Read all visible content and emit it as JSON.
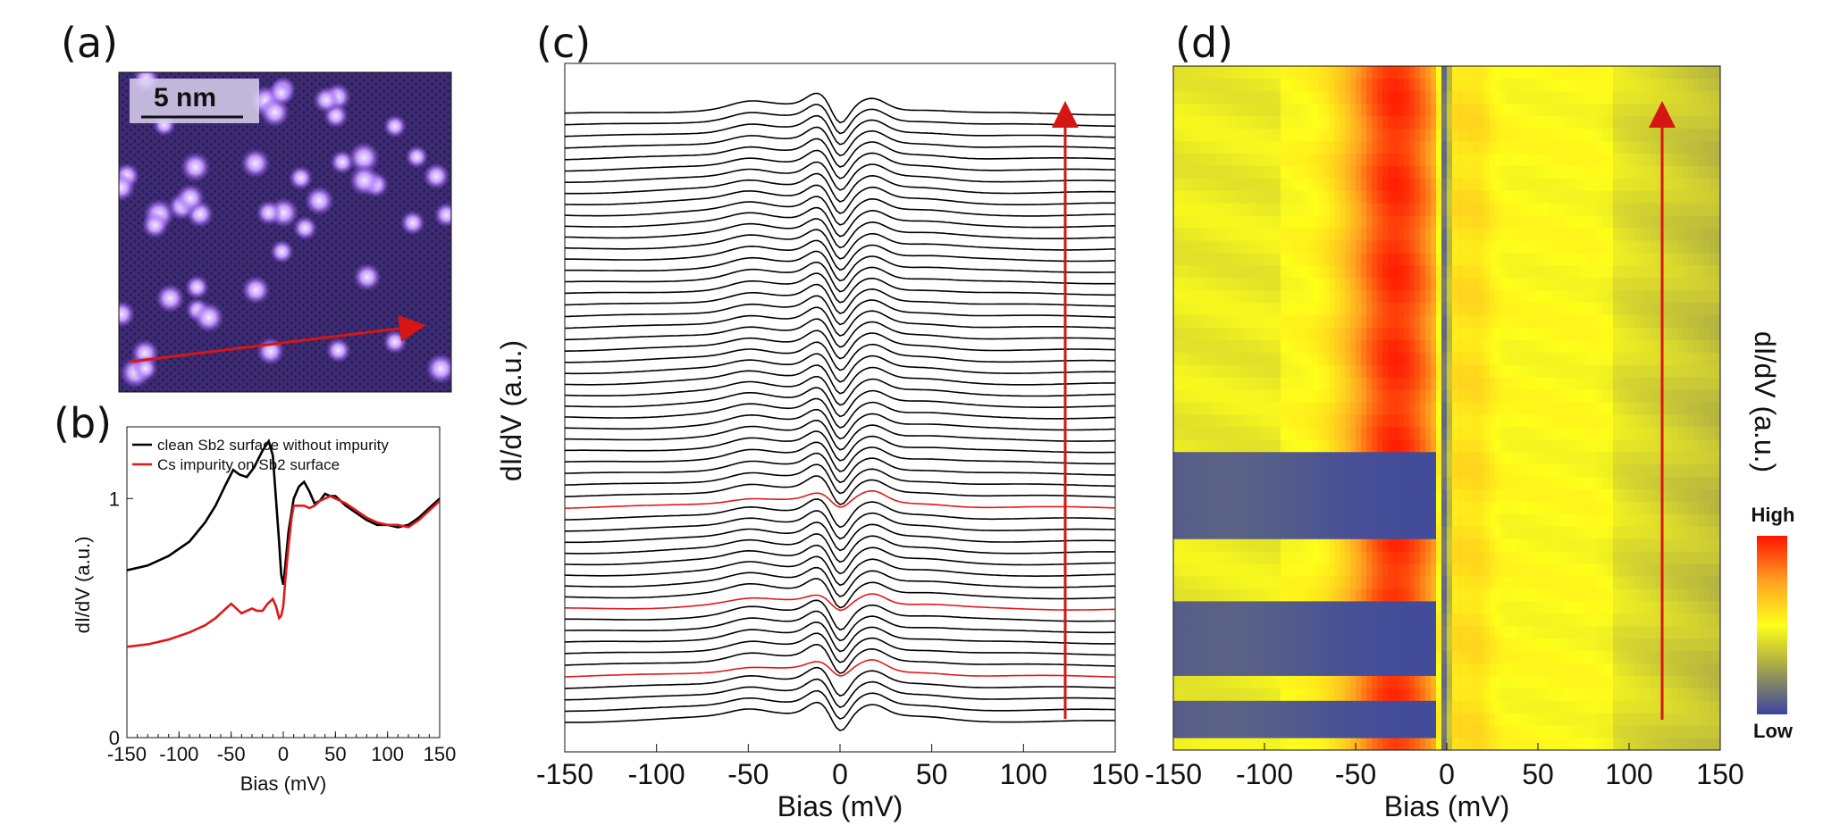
{
  "panels": {
    "a": {
      "label": "(a)",
      "scale_bar": "5 nm"
    },
    "b": {
      "label": "(b)"
    },
    "c": {
      "label": "(c)"
    },
    "d": {
      "label": "(d)"
    }
  },
  "colorbar": {
    "high": "High",
    "low": "Low",
    "title": "dI/dV (a.u.)"
  },
  "colors": {
    "black": "#000000",
    "red": "#e01818",
    "arrow": "#d61515"
  },
  "chart_data": [
    {
      "panel": "b",
      "type": "line",
      "xlabel": "Bias (mV)",
      "ylabel": "dI/dV (a.u.)",
      "xlim": [
        -150,
        150
      ],
      "ylim": [
        0,
        1.3
      ],
      "xticks": [
        "-150",
        "-100",
        "-50",
        "0",
        "50",
        "100",
        "150"
      ],
      "yticks": [
        "0",
        "1"
      ],
      "series": [
        {
          "name": "clean Sb2 surface without impurity",
          "color": "#000000",
          "x": [
            -150,
            -130,
            -110,
            -90,
            -75,
            -65,
            -55,
            -48,
            -42,
            -35,
            -28,
            -20,
            -14,
            -10,
            -7,
            -4,
            -2,
            0,
            2,
            5,
            10,
            15,
            20,
            25,
            30,
            35,
            40,
            45,
            50,
            55,
            60,
            70,
            80,
            90,
            100,
            110,
            120,
            130,
            140,
            150
          ],
          "y": [
            0.7,
            0.72,
            0.76,
            0.82,
            0.9,
            0.97,
            1.06,
            1.12,
            1.1,
            1.09,
            1.13,
            1.2,
            1.24,
            1.18,
            1.0,
            0.82,
            0.68,
            0.64,
            0.72,
            0.86,
            1.0,
            1.05,
            1.07,
            1.03,
            0.98,
            0.99,
            1.02,
            1.01,
            1.01,
            0.99,
            0.97,
            0.94,
            0.91,
            0.89,
            0.89,
            0.88,
            0.89,
            0.92,
            0.96,
            1.0
          ]
        },
        {
          "name": "Cs impurity on Sb2 surface",
          "color": "#e01818",
          "x": [
            -150,
            -130,
            -110,
            -90,
            -75,
            -65,
            -55,
            -50,
            -45,
            -40,
            -35,
            -30,
            -25,
            -20,
            -15,
            -10,
            -7,
            -4,
            -2,
            0,
            2,
            5,
            8,
            10,
            15,
            20,
            25,
            30,
            35,
            40,
            45,
            50,
            55,
            60,
            70,
            80,
            90,
            100,
            110,
            120,
            130,
            140,
            150
          ],
          "y": [
            0.38,
            0.39,
            0.41,
            0.44,
            0.47,
            0.5,
            0.54,
            0.56,
            0.54,
            0.52,
            0.53,
            0.54,
            0.53,
            0.53,
            0.56,
            0.58,
            0.55,
            0.5,
            0.51,
            0.55,
            0.66,
            0.8,
            0.92,
            0.97,
            0.97,
            0.97,
            0.96,
            0.97,
            0.99,
            1.0,
            1.01,
            1.0,
            0.99,
            0.98,
            0.95,
            0.92,
            0.9,
            0.89,
            0.89,
            0.88,
            0.91,
            0.95,
            0.99
          ]
        }
      ]
    },
    {
      "panel": "c",
      "type": "line",
      "xlabel": "Bias (mV)",
      "ylabel": "dI/dV (a.u.)",
      "xlim": [
        -150,
        150
      ],
      "xticks": [
        "-150",
        "-100",
        "-50",
        "0",
        "50",
        "100",
        "150"
      ],
      "n_spectra": 55,
      "red_spectra_index_from_bottom": [
        4,
        10,
        19
      ],
      "description": "waterfall of spectra stacked along the arrow path"
    },
    {
      "panel": "d",
      "type": "heatmap",
      "xlabel": "Bias (mV)",
      "xlim": [
        -150,
        150
      ],
      "xticks": [
        "-150",
        "-100",
        "-50",
        "0",
        "50",
        "100",
        "150"
      ],
      "n_rows": 55,
      "impurity_rows_from_bottom": [
        [
          1,
          3
        ],
        [
          6,
          8
        ],
        [
          9,
          11
        ],
        [
          17,
          19
        ],
        [
          20,
          23
        ]
      ],
      "colorbar": [
        "Low",
        "High"
      ]
    }
  ]
}
